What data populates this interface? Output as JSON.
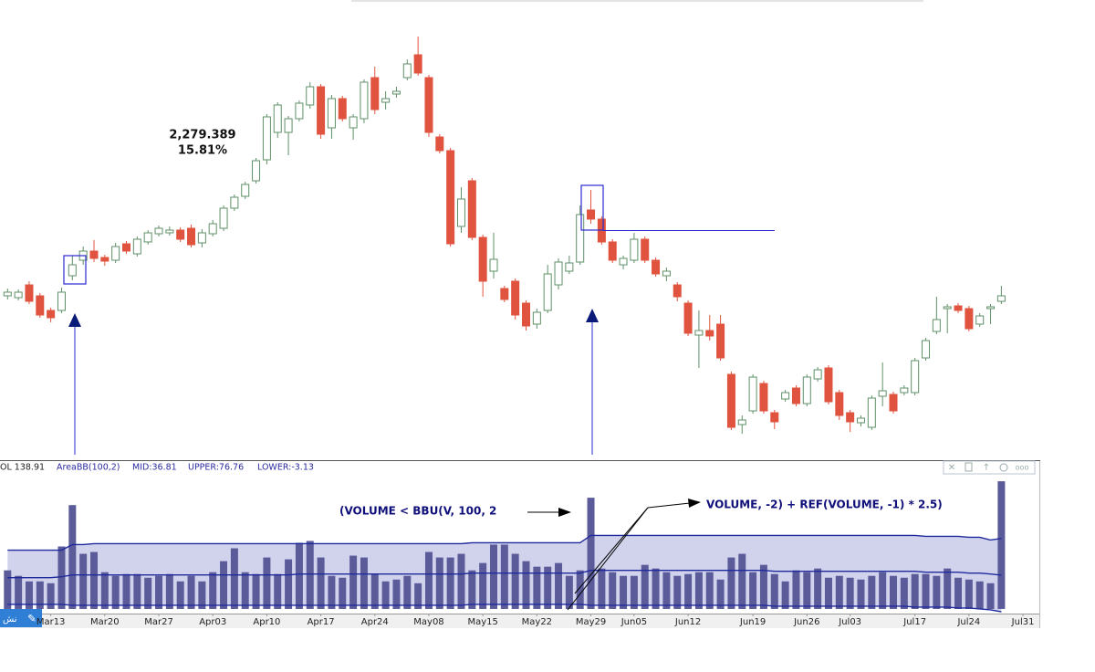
{
  "chart_data": {
    "type": "candlestick",
    "annotations": [
      "2,279.389",
      "15.81%"
    ],
    "volume_annotations": [
      "(VOLUME < BBU(V, 100, 2",
      "VOLUME, -2) + REF(VOLUME, -1) * 2.5)"
    ],
    "indicator_labels": [
      "OL 138.91",
      "AreaBB(100,2)",
      "MID:36.81",
      "UPPER:76.76",
      "LOWER:-3.13"
    ],
    "badge": "نش",
    "xlim": [
      -0.7,
      95.6
    ],
    "xticks": [
      {
        "value": 4,
        "label": "Mar13"
      },
      {
        "value": 9,
        "label": "Mar20"
      },
      {
        "value": 14,
        "label": "Mar27"
      },
      {
        "value": 19,
        "label": "Apr03"
      },
      {
        "value": 24,
        "label": "Apr10"
      },
      {
        "value": 29,
        "label": "Apr17"
      },
      {
        "value": 34,
        "label": "Apr24"
      },
      {
        "value": 39,
        "label": "May08"
      },
      {
        "value": 44,
        "label": "May15"
      },
      {
        "value": 49,
        "label": "May22"
      },
      {
        "value": 54,
        "label": "May29"
      },
      {
        "value": 58,
        "label": "Jun05"
      },
      {
        "value": 63,
        "label": "Jun12"
      },
      {
        "value": 69,
        "label": "Jun19"
      },
      {
        "value": 74,
        "label": "Jun26"
      },
      {
        "value": 78,
        "label": "Jul03"
      },
      {
        "value": 84,
        "label": "Jul17"
      },
      {
        "value": 89,
        "label": "Jul24"
      },
      {
        "value": 94,
        "label": "Jul31"
      }
    ],
    "ylim": [
      0,
      470
    ],
    "up_color": "#5f9068",
    "down_color": "#e0533f",
    "open": [
      181,
      179,
      193,
      181,
      165,
      165,
      203,
      220,
      230,
      223,
      220,
      238,
      227,
      240,
      249,
      250,
      253,
      255,
      239,
      249,
      255,
      277,
      290,
      307,
      330,
      360,
      360,
      375,
      390,
      410,
      365,
      397,
      365,
      375,
      420,
      393,
      402,
      420,
      445,
      420,
      355,
      340,
      257,
      307,
      245,
      208,
      189,
      197,
      173,
      150,
      165,
      193,
      208,
      218,
      275,
      265,
      240,
      215,
      220,
      243,
      220,
      203,
      193,
      173,
      138,
      143,
      150,
      95,
      40,
      55,
      85,
      53,
      68,
      80,
      63,
      90,
      102,
      75,
      53,
      42,
      37,
      71,
      73,
      75,
      75,
      113,
      142,
      167,
      170,
      167,
      150,
      167,
      175
    ],
    "high": [
      189,
      188,
      197,
      184,
      168,
      190,
      225,
      235,
      242,
      226,
      239,
      241,
      246,
      253,
      258,
      257,
      256,
      259,
      254,
      264,
      280,
      292,
      306,
      332,
      380,
      393,
      378,
      395,
      415,
      413,
      401,
      400,
      380,
      418,
      432,
      405,
      410,
      440,
      465,
      423,
      358,
      343,
      300,
      310,
      248,
      250,
      192,
      200,
      176,
      167,
      215,
      222,
      225,
      280,
      297,
      268,
      243,
      225,
      250,
      246,
      223,
      212,
      196,
      176,
      165,
      160,
      160,
      98,
      50,
      95,
      88,
      56,
      78,
      83,
      95,
      103,
      105,
      78,
      56,
      50,
      72,
      108,
      76,
      83,
      113,
      135,
      180,
      172,
      173,
      170,
      162,
      172,
      192
    ],
    "low": [
      177,
      176,
      172,
      157,
      152,
      162,
      198,
      215,
      218,
      214,
      217,
      227,
      224,
      237,
      246,
      247,
      240,
      234,
      234,
      246,
      252,
      274,
      287,
      304,
      325,
      354,
      335,
      372,
      386,
      353,
      353,
      372,
      352,
      370,
      380,
      385,
      398,
      417,
      422,
      355,
      337,
      235,
      250,
      242,
      180,
      200,
      174,
      155,
      143,
      145,
      162,
      188,
      205,
      215,
      260,
      237,
      217,
      210,
      217,
      217,
      202,
      197,
      175,
      137,
      102,
      132,
      110,
      34,
      30,
      52,
      52,
      35,
      65,
      60,
      60,
      87,
      62,
      45,
      32,
      38,
      34,
      60,
      52,
      72,
      72,
      110,
      139,
      140,
      162,
      142,
      147,
      150,
      172
    ],
    "close": [
      185,
      185,
      175,
      160,
      157,
      185,
      215,
      230,
      222,
      219,
      235,
      230,
      243,
      250,
      255,
      253,
      243,
      237,
      250,
      260,
      277,
      289,
      303,
      329,
      377,
      390,
      375,
      392,
      410,
      358,
      397,
      375,
      377,
      415,
      385,
      397,
      405,
      435,
      425,
      360,
      340,
      238,
      287,
      245,
      197,
      221,
      177,
      160,
      148,
      163,
      205,
      218,
      217,
      270,
      265,
      240,
      220,
      222,
      243,
      220,
      205,
      208,
      180,
      140,
      143,
      137,
      113,
      37,
      45,
      92,
      55,
      43,
      75,
      63,
      92,
      100,
      65,
      50,
      43,
      47,
      69,
      77,
      55,
      80,
      110,
      132,
      155,
      169,
      165,
      145,
      159,
      169,
      181
    ],
    "volume": {
      "ylim": [
        -5,
        140
      ],
      "color": "#5b5b9a",
      "band_color": "#c9cbea",
      "line_color": "#1f2a9c",
      "values": [
        42,
        36,
        30,
        30,
        28,
        68,
        113,
        60,
        62,
        40,
        36,
        38,
        38,
        34,
        36,
        38,
        30,
        36,
        30,
        40,
        52,
        66,
        40,
        38,
        56,
        38,
        54,
        72,
        74,
        56,
        36,
        34,
        58,
        56,
        38,
        30,
        32,
        36,
        28,
        62,
        56,
        56,
        60,
        42,
        50,
        70,
        70,
        60,
        52,
        46,
        46,
        50,
        36,
        42,
        121,
        44,
        40,
        36,
        36,
        48,
        44,
        40,
        36,
        38,
        40,
        40,
        32,
        56,
        60,
        40,
        48,
        38,
        30,
        42,
        40,
        44,
        34,
        36,
        34,
        32,
        36,
        40,
        36,
        34,
        38,
        38,
        36,
        44,
        34,
        32,
        30,
        28,
        138.91
      ],
      "upper": [
        64,
        64,
        64,
        64,
        64,
        64,
        70,
        70,
        71,
        71,
        71,
        71,
        71,
        71,
        71,
        71,
        71,
        71,
        71,
        71,
        71,
        71,
        71,
        71,
        71,
        71,
        71,
        71,
        71,
        71,
        71,
        71,
        71,
        71,
        71,
        71,
        71,
        71,
        71,
        71,
        71,
        71,
        71,
        72,
        72,
        72,
        72,
        72,
        72,
        72,
        72,
        72,
        72,
        72,
        80,
        80,
        80,
        80,
        80,
        80,
        80,
        80,
        80,
        80,
        80,
        80,
        80,
        80,
        80,
        80,
        80,
        80,
        80,
        80,
        80,
        80,
        80,
        80,
        80,
        80,
        80,
        80,
        80,
        80,
        80,
        79,
        79,
        79,
        79,
        78,
        78,
        75,
        76.76
      ],
      "mid": [
        34,
        34,
        34,
        34,
        34,
        35,
        37,
        37,
        37,
        37,
        37,
        37,
        37,
        37,
        37,
        37,
        37,
        37,
        37,
        37,
        37,
        37,
        37,
        37,
        37,
        37,
        37,
        38,
        38,
        38,
        38,
        38,
        38,
        38,
        38,
        38,
        38,
        38,
        38,
        38,
        38,
        38,
        38,
        39,
        39,
        39,
        39,
        39,
        39,
        39,
        39,
        39,
        39,
        39,
        42,
        42,
        42,
        42,
        42,
        42,
        42,
        42,
        42,
        42,
        42,
        42,
        42,
        42,
        42,
        42,
        42,
        41,
        41,
        41,
        41,
        41,
        41,
        41,
        41,
        41,
        41,
        41,
        41,
        41,
        41,
        40,
        40,
        40,
        40,
        39,
        39,
        38,
        36.81
      ],
      "lower": [
        5,
        5,
        5,
        5,
        5,
        5,
        4,
        4,
        4,
        4,
        4,
        4,
        4,
        4,
        4,
        4,
        4,
        4,
        4,
        4,
        4,
        4,
        4,
        4,
        4,
        4,
        4,
        4,
        4,
        4,
        4,
        4,
        4,
        4,
        4,
        4,
        4,
        4,
        4,
        4,
        4,
        4,
        4,
        5,
        5,
        5,
        5,
        5,
        5,
        5,
        5,
        5,
        5,
        5,
        4,
        4,
        4,
        4,
        4,
        4,
        4,
        4,
        4,
        4,
        4,
        4,
        4,
        4,
        4,
        4,
        4,
        3,
        3,
        3,
        3,
        3,
        3,
        3,
        3,
        3,
        3,
        3,
        3,
        3,
        2,
        2,
        2,
        2,
        1,
        1,
        0,
        -1,
        -3.13
      ]
    }
  }
}
